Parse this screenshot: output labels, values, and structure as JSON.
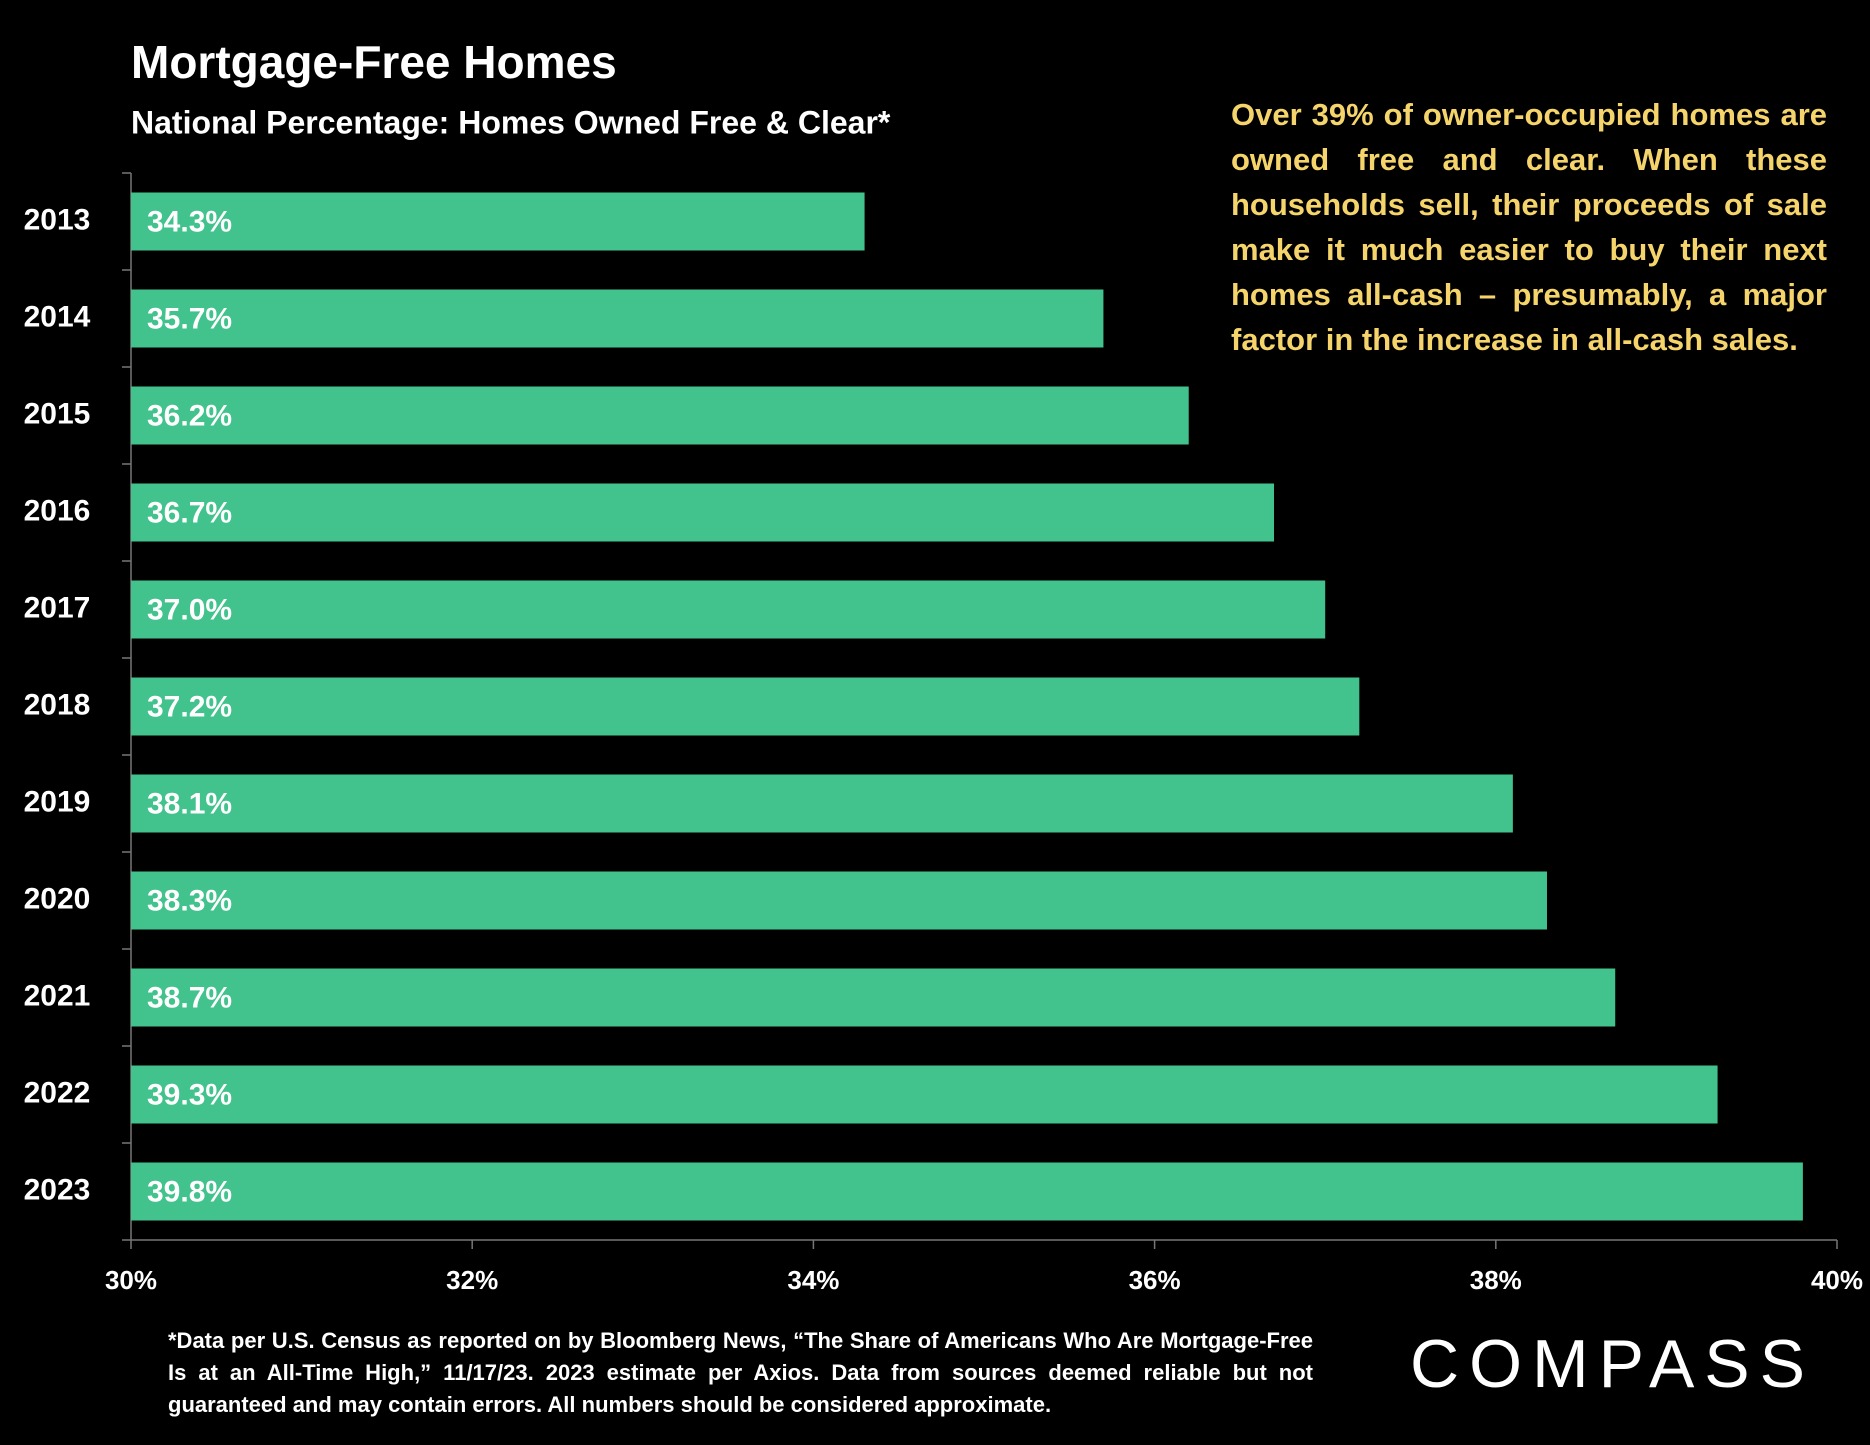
{
  "chart_data": {
    "type": "bar",
    "orientation": "horizontal",
    "title": "Mortgage-Free Homes",
    "subtitle": "National Percentage: Homes Owned Free & Clear*",
    "annotation": "Over 39% of owner-occupied homes are owned free and clear. When these households sell, their proceeds of sale make it much easier to buy their next homes all-cash – presumably, a major factor in the increase in all-cash sales.",
    "footnote": "*Data per U.S. Census as reported on by Bloomberg News, “The Share of Americans Who Are Mortgage-Free Is at an All-Time High,” 11/17/23. 2023 estimate per Axios. Data from sources deemed reliable but not guaranteed and may contain errors. All numbers should be considered approximate.",
    "brand": "COMPASS",
    "categories": [
      "2013",
      "2014",
      "2015",
      "2016",
      "2017",
      "2018",
      "2019",
      "2020",
      "2021",
      "2022",
      "2023"
    ],
    "values": [
      34.3,
      35.7,
      36.2,
      36.7,
      37.0,
      37.2,
      38.1,
      38.3,
      38.7,
      39.3,
      39.8
    ],
    "value_labels": [
      "34.3%",
      "35.7%",
      "36.2%",
      "36.7%",
      "37.0%",
      "37.2%",
      "38.1%",
      "38.3%",
      "38.7%",
      "39.3%",
      "39.8%"
    ],
    "color": "#42c28c",
    "xlim": [
      30,
      40
    ],
    "xticks": [
      {
        "value": 30,
        "label": "30%"
      },
      {
        "value": 32,
        "label": "32%"
      },
      {
        "value": 34,
        "label": "34%"
      },
      {
        "value": 36,
        "label": "36%"
      },
      {
        "value": 38,
        "label": "38%"
      },
      {
        "value": 40,
        "label": "40%"
      }
    ],
    "grid": false
  }
}
